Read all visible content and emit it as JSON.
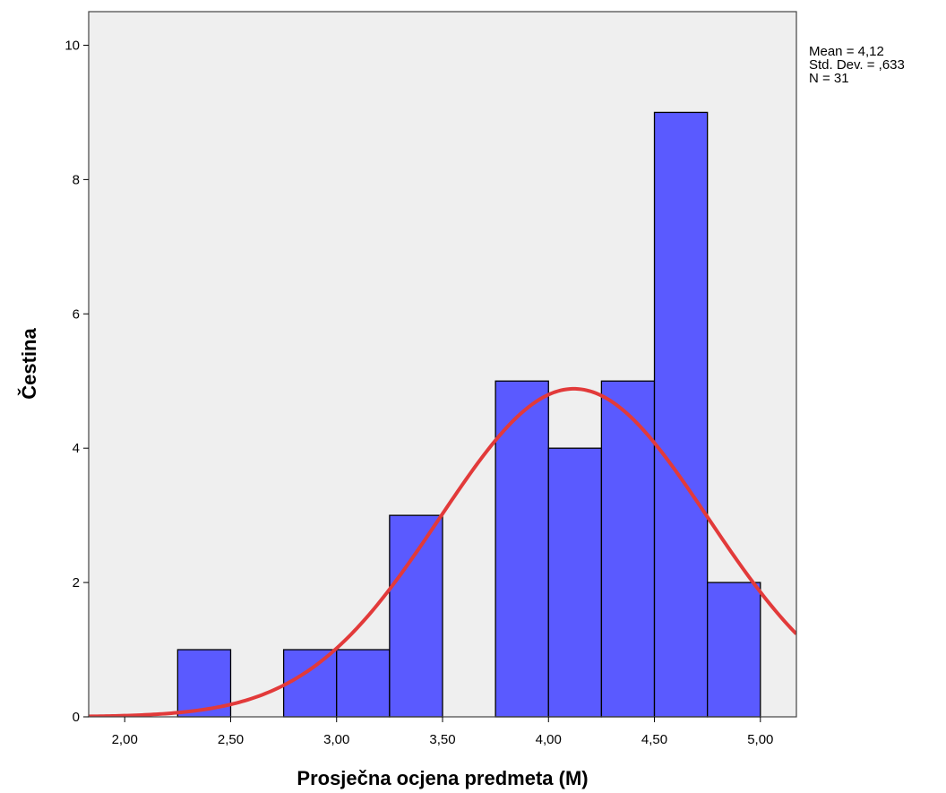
{
  "chart_data": {
    "type": "bar",
    "subtype": "histogram",
    "xlabel": "Prosječna ocjena predmeta (M)",
    "ylabel": "Čestina",
    "xlim": [
      1.83,
      5.17
    ],
    "ylim": [
      0,
      10.5
    ],
    "x_ticks": [
      2.0,
      2.5,
      3.0,
      3.5,
      4.0,
      4.5,
      5.0
    ],
    "x_tick_labels": [
      "2,00",
      "2,50",
      "3,00",
      "3,50",
      "4,00",
      "4,50",
      "5,00"
    ],
    "y_ticks": [
      0,
      2,
      4,
      6,
      8,
      10
    ],
    "y_tick_labels": [
      "0",
      "2",
      "4",
      "6",
      "8",
      "10"
    ],
    "bin_width": 0.25,
    "bins": [
      {
        "start": 2.25,
        "end": 2.5,
        "count": 1
      },
      {
        "start": 2.75,
        "end": 3.0,
        "count": 1
      },
      {
        "start": 3.0,
        "end": 3.25,
        "count": 1
      },
      {
        "start": 3.25,
        "end": 3.5,
        "count": 3
      },
      {
        "start": 3.75,
        "end": 4.0,
        "count": 5
      },
      {
        "start": 4.0,
        "end": 4.25,
        "count": 4
      },
      {
        "start": 4.25,
        "end": 4.5,
        "count": 5
      },
      {
        "start": 4.5,
        "end": 4.75,
        "count": 9
      },
      {
        "start": 4.75,
        "end": 5.0,
        "count": 2
      }
    ],
    "normal_curve": {
      "mean": 4.12,
      "sd": 0.633,
      "n": 31
    },
    "stats": {
      "mean": "Mean = 4,12",
      "std_dev": "Std. Dev. = ,633",
      "n": "N = 31"
    },
    "colors": {
      "bar_fill": "#5a5aff",
      "bar_stroke": "#000000",
      "curve": "#e23a3a",
      "plot_background": "#efefef"
    },
    "grid": false
  }
}
